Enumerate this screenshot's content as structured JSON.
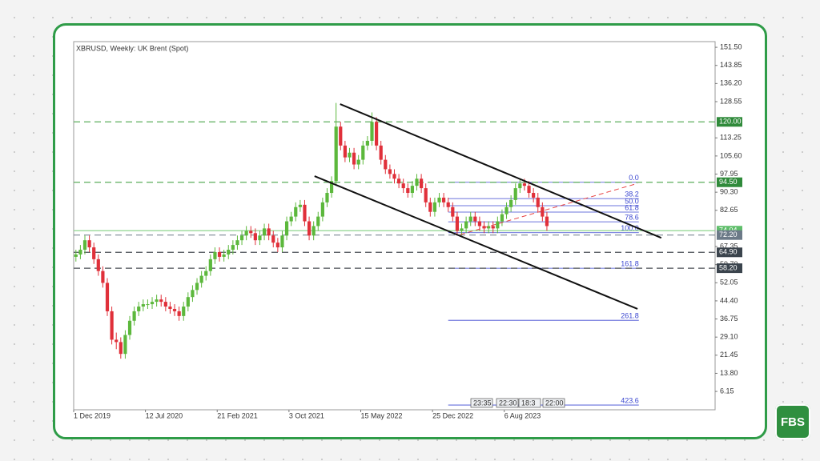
{
  "chart_data": {
    "type": "candlestick",
    "title": "XBRUSD, Weekly: UK Brent (Spot)",
    "up_color": "#5cb83c",
    "down_color": "#e0303a",
    "xlim": [
      -0.5,
      142.5
    ],
    "xticks": [
      {
        "value": 0,
        "label": "1 Dec 2019"
      },
      {
        "value": 16,
        "label": "12 Jul 2020"
      },
      {
        "value": 32,
        "label": "21 Feb 2021"
      },
      {
        "value": 48,
        "label": "3 Oct 2021"
      },
      {
        "value": 64,
        "label": "15 May 2022"
      },
      {
        "value": 80,
        "label": "25 Dec 2022"
      },
      {
        "value": 96,
        "label": "6 Aug 2023"
      }
    ],
    "ylim": [
      -1.6,
      153.9
    ],
    "yticks": [
      {
        "value": 151.5,
        "label": "151.50"
      },
      {
        "value": 143.85,
        "label": "143.85"
      },
      {
        "value": 136.2,
        "label": "136.20"
      },
      {
        "value": 128.55,
        "label": "128.55"
      },
      {
        "value": 113.25,
        "label": "113.25"
      },
      {
        "value": 105.6,
        "label": "105.60"
      },
      {
        "value": 97.95,
        "label": "97.95"
      },
      {
        "value": 90.3,
        "label": "90.30"
      },
      {
        "value": 82.65,
        "label": "82.65"
      },
      {
        "value": 67.35,
        "label": "67.35"
      },
      {
        "value": 59.7,
        "label": "59.70"
      },
      {
        "value": 52.05,
        "label": "52.05"
      },
      {
        "value": 44.4,
        "label": "44.40"
      },
      {
        "value": 36.75,
        "label": "36.75"
      },
      {
        "value": 29.1,
        "label": "29.10"
      },
      {
        "value": 21.45,
        "label": "21.45"
      },
      {
        "value": 13.8,
        "label": "13.80"
      },
      {
        "value": 6.15,
        "label": "6.15"
      }
    ],
    "candles": [
      [
        63,
        66,
        61,
        64
      ],
      [
        64,
        68,
        62,
        66
      ],
      [
        66,
        72,
        64,
        70
      ],
      [
        70,
        72,
        65,
        67
      ],
      [
        67,
        69,
        60,
        62
      ],
      [
        62,
        64,
        55,
        57
      ],
      [
        57,
        59,
        50,
        52
      ],
      [
        52,
        54,
        38,
        40
      ],
      [
        40,
        42,
        26,
        28
      ],
      [
        28,
        31,
        24,
        27
      ],
      [
        27,
        29,
        20,
        22
      ],
      [
        22,
        32,
        20,
        30
      ],
      [
        30,
        38,
        28,
        36
      ],
      [
        36,
        42,
        34,
        40
      ],
      [
        40,
        44,
        38,
        42
      ],
      [
        42,
        45,
        40,
        43
      ],
      [
        43,
        45,
        41,
        43
      ],
      [
        43,
        46,
        41,
        44
      ],
      [
        44,
        47,
        42,
        45
      ],
      [
        45,
        47,
        42,
        44
      ],
      [
        44,
        46,
        40,
        42
      ],
      [
        42,
        44,
        39,
        41
      ],
      [
        41,
        43,
        38,
        40
      ],
      [
        40,
        42,
        36,
        38
      ],
      [
        38,
        44,
        36,
        42
      ],
      [
        42,
        48,
        40,
        46
      ],
      [
        46,
        51,
        44,
        49
      ],
      [
        49,
        54,
        47,
        52
      ],
      [
        52,
        57,
        50,
        55
      ],
      [
        55,
        59,
        53,
        57
      ],
      [
        57,
        64,
        55,
        62
      ],
      [
        62,
        67,
        60,
        65
      ],
      [
        65,
        67,
        61,
        63
      ],
      [
        63,
        66,
        61,
        64
      ],
      [
        64,
        68,
        62,
        66
      ],
      [
        66,
        70,
        64,
        68
      ],
      [
        68,
        72,
        66,
        70
      ],
      [
        70,
        74,
        68,
        72
      ],
      [
        72,
        76,
        70,
        74
      ],
      [
        74,
        76,
        71,
        73
      ],
      [
        73,
        75,
        68,
        70
      ],
      [
        70,
        74,
        68,
        72
      ],
      [
        72,
        77,
        70,
        75
      ],
      [
        75,
        77,
        70,
        72
      ],
      [
        72,
        74,
        67,
        69
      ],
      [
        69,
        71,
        65,
        67
      ],
      [
        67,
        74,
        65,
        72
      ],
      [
        72,
        80,
        70,
        78
      ],
      [
        78,
        82,
        76,
        80
      ],
      [
        80,
        86,
        78,
        84
      ],
      [
        84,
        87,
        82,
        85
      ],
      [
        85,
        87,
        76,
        78
      ],
      [
        78,
        80,
        70,
        72
      ],
      [
        72,
        78,
        70,
        76
      ],
      [
        76,
        82,
        74,
        80
      ],
      [
        80,
        88,
        78,
        86
      ],
      [
        86,
        92,
        84,
        90
      ],
      [
        90,
        97,
        88,
        95
      ],
      [
        95,
        128,
        93,
        118
      ],
      [
        118,
        120,
        108,
        110
      ],
      [
        110,
        112,
        103,
        105
      ],
      [
        105,
        109,
        103,
        107
      ],
      [
        107,
        109,
        100,
        102
      ],
      [
        102,
        106,
        100,
        104
      ],
      [
        104,
        112,
        102,
        110
      ],
      [
        110,
        114,
        108,
        112
      ],
      [
        112,
        124,
        110,
        120
      ],
      [
        120,
        122,
        108,
        110
      ],
      [
        110,
        112,
        102,
        104
      ],
      [
        104,
        106,
        98,
        100
      ],
      [
        100,
        102,
        96,
        98
      ],
      [
        98,
        100,
        94,
        96
      ],
      [
        96,
        98,
        92,
        94
      ],
      [
        94,
        96,
        90,
        92
      ],
      [
        92,
        94,
        88,
        90
      ],
      [
        90,
        95,
        88,
        93
      ],
      [
        93,
        98,
        91,
        96
      ],
      [
        96,
        98,
        90,
        92
      ],
      [
        92,
        94,
        84,
        86
      ],
      [
        86,
        88,
        80,
        82
      ],
      [
        82,
        88,
        80,
        86
      ],
      [
        86,
        90,
        84,
        88
      ],
      [
        88,
        90,
        84,
        86
      ],
      [
        86,
        88,
        82,
        84
      ],
      [
        84,
        86,
        78,
        80
      ],
      [
        80,
        82,
        72,
        74
      ],
      [
        74,
        77,
        72,
        75
      ],
      [
        75,
        80,
        73,
        78
      ],
      [
        78,
        82,
        76,
        80
      ],
      [
        80,
        82,
        76,
        78
      ],
      [
        78,
        80,
        74,
        76
      ],
      [
        76,
        78,
        73,
        75
      ],
      [
        75,
        78,
        73,
        76
      ],
      [
        76,
        78,
        73,
        75
      ],
      [
        75,
        80,
        73,
        78
      ],
      [
        78,
        83,
        76,
        81
      ],
      [
        81,
        86,
        79,
        84
      ],
      [
        84,
        89,
        82,
        87
      ],
      [
        87,
        94,
        85,
        92
      ],
      [
        92,
        96,
        90,
        94
      ],
      [
        94,
        96,
        91,
        93
      ],
      [
        93,
        95,
        88,
        90
      ],
      [
        90,
        92,
        86,
        88
      ],
      [
        88,
        90,
        82,
        84
      ],
      [
        84,
        86,
        78,
        80
      ],
      [
        80,
        82,
        74,
        76
      ]
    ],
    "price_levels": [
      {
        "value": 120,
        "label": "120.00",
        "style": "dashed",
        "color": "#5cae5c",
        "label_bg": "#2f8a3a"
      },
      {
        "value": 94.5,
        "label": "94.50",
        "style": "dashed",
        "color": "#5cae5c",
        "label_bg": "#2f8a3a"
      },
      {
        "value": 74.04,
        "label": "74.04",
        "style": "solid",
        "color": "#8fd48f",
        "label_bg": "#5fbf6a"
      },
      {
        "value": 72.2,
        "label": "72.20",
        "style": "dashed",
        "color": "#7a8794",
        "label_bg": "#6c7a88"
      },
      {
        "value": 64.9,
        "label": "64.90",
        "style": "dashed",
        "color": "#4a4f55",
        "label_bg": "#3b444d"
      },
      {
        "value": 58.2,
        "label": "58.20",
        "style": "dashed",
        "color": "#4a4f55",
        "label_bg": "#3b444d"
      }
    ],
    "channel_lines": [
      {
        "x": [
          58.9,
          130.5
        ],
        "y": [
          127.5,
          71.0
        ],
        "color": "#111111"
      },
      {
        "x": [
          53.2,
          125.2
        ],
        "y": [
          97.1,
          41.0
        ],
        "color": "#111111"
      }
    ],
    "trend_line": {
      "x": [
        85.7,
        125.2
      ],
      "y": [
        72.4,
        94.0
      ],
      "color": "#e84545"
    },
    "fibonacci": {
      "x": [
        83,
        125.5
      ],
      "color": "#3a46d0",
      "levels": [
        {
          "label": "0.0",
          "price": 94.5
        },
        {
          "label": "38.2",
          "price": 87.6
        },
        {
          "label": "50.0",
          "price": 84.6
        },
        {
          "label": "61.8",
          "price": 81.9
        },
        {
          "label": "78.6",
          "price": 77.8
        },
        {
          "label": "100.0",
          "price": 73.2
        },
        {
          "label": "161.8",
          "price": 58.2
        },
        {
          "label": "261.8",
          "price": 36.2
        },
        {
          "label": "423.6",
          "price": 0.4
        }
      ]
    },
    "time_labels": [
      "23:35",
      "22:30",
      "18:3",
      "22:00"
    ]
  },
  "logo": "FBS"
}
